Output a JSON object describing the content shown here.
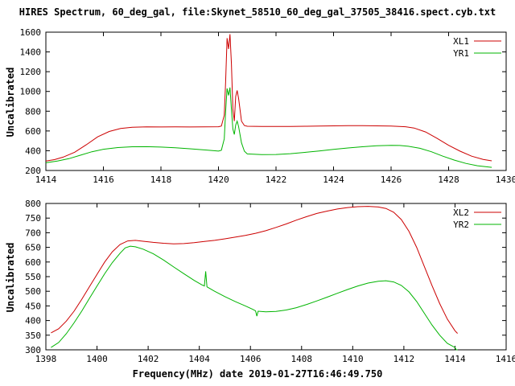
{
  "title": "HIRES Spectrum, 60_deg_gal, file:Skynet_58510_60_deg_gal_37505_38416.spect.cyb.txt",
  "xlabel": "Frequency(MHz) date 2019-01-27T16:46:49.750",
  "colors": {
    "red": "#cc0000",
    "green": "#00b400",
    "axis": "#000000",
    "background": "#ffffff"
  },
  "chart_data": [
    {
      "type": "line",
      "ylabel": "Uncalibrated",
      "xlim": [
        1414,
        1430
      ],
      "ylim": [
        200,
        1600
      ],
      "xticks": [
        1414,
        1416,
        1418,
        1420,
        1422,
        1424,
        1426,
        1428,
        1430
      ],
      "yticks": [
        200,
        400,
        600,
        800,
        1000,
        1200,
        1400,
        1600
      ],
      "legend_position": "top-right",
      "grid": false,
      "series": [
        {
          "name": "XL1",
          "color": "#cc0000",
          "points": [
            [
              1414.0,
              295
            ],
            [
              1414.3,
              310
            ],
            [
              1414.6,
              335
            ],
            [
              1415.0,
              385
            ],
            [
              1415.4,
              460
            ],
            [
              1415.8,
              540
            ],
            [
              1416.2,
              595
            ],
            [
              1416.6,
              625
            ],
            [
              1417.0,
              638
            ],
            [
              1417.5,
              641
            ],
            [
              1418.0,
              640
            ],
            [
              1418.5,
              641
            ],
            [
              1419.0,
              640
            ],
            [
              1419.5,
              641
            ],
            [
              1420.0,
              643
            ],
            [
              1420.1,
              650
            ],
            [
              1420.2,
              760
            ],
            [
              1420.25,
              1100
            ],
            [
              1420.3,
              1540
            ],
            [
              1420.35,
              1430
            ],
            [
              1420.4,
              1580
            ],
            [
              1420.45,
              1280
            ],
            [
              1420.5,
              820
            ],
            [
              1420.55,
              700
            ],
            [
              1420.6,
              950
            ],
            [
              1420.65,
              1010
            ],
            [
              1420.7,
              930
            ],
            [
              1420.8,
              700
            ],
            [
              1420.9,
              655
            ],
            [
              1421.0,
              648
            ],
            [
              1421.5,
              645
            ],
            [
              1422.0,
              646
            ],
            [
              1422.5,
              646
            ],
            [
              1423.0,
              648
            ],
            [
              1423.5,
              650
            ],
            [
              1424.0,
              652
            ],
            [
              1424.5,
              653
            ],
            [
              1425.0,
              654
            ],
            [
              1425.5,
              652
            ],
            [
              1426.0,
              650
            ],
            [
              1426.5,
              643
            ],
            [
              1426.8,
              630
            ],
            [
              1427.2,
              590
            ],
            [
              1427.6,
              525
            ],
            [
              1428.0,
              455
            ],
            [
              1428.4,
              395
            ],
            [
              1428.8,
              345
            ],
            [
              1429.2,
              312
            ],
            [
              1429.5,
              298
            ]
          ]
        },
        {
          "name": "YR1",
          "color": "#00b400",
          "points": [
            [
              1414.0,
              278
            ],
            [
              1414.4,
              295
            ],
            [
              1414.8,
              320
            ],
            [
              1415.2,
              355
            ],
            [
              1415.6,
              390
            ],
            [
              1416.0,
              415
            ],
            [
              1416.5,
              432
            ],
            [
              1417.0,
              440
            ],
            [
              1417.5,
              441
            ],
            [
              1418.0,
              437
            ],
            [
              1418.5,
              430
            ],
            [
              1419.0,
              420
            ],
            [
              1419.5,
              408
            ],
            [
              1420.0,
              396
            ],
            [
              1420.1,
              405
            ],
            [
              1420.2,
              520
            ],
            [
              1420.25,
              800
            ],
            [
              1420.3,
              1030
            ],
            [
              1420.35,
              960
            ],
            [
              1420.4,
              1040
            ],
            [
              1420.45,
              820
            ],
            [
              1420.5,
              620
            ],
            [
              1420.55,
              565
            ],
            [
              1420.6,
              660
            ],
            [
              1420.65,
              700
            ],
            [
              1420.7,
              645
            ],
            [
              1420.8,
              480
            ],
            [
              1420.9,
              395
            ],
            [
              1421.0,
              368
            ],
            [
              1421.5,
              360
            ],
            [
              1422.0,
              362
            ],
            [
              1422.5,
              370
            ],
            [
              1423.0,
              383
            ],
            [
              1423.5,
              398
            ],
            [
              1424.0,
              413
            ],
            [
              1424.5,
              428
            ],
            [
              1425.0,
              440
            ],
            [
              1425.5,
              450
            ],
            [
              1426.0,
              455
            ],
            [
              1426.3,
              453
            ],
            [
              1426.6,
              445
            ],
            [
              1427.0,
              425
            ],
            [
              1427.4,
              390
            ],
            [
              1427.8,
              345
            ],
            [
              1428.2,
              305
            ],
            [
              1428.6,
              272
            ],
            [
              1429.0,
              248
            ],
            [
              1429.5,
              232
            ]
          ]
        }
      ]
    },
    {
      "type": "line",
      "ylabel": "Uncalibrated",
      "xlim": [
        1398,
        1416
      ],
      "ylim": [
        300,
        800
      ],
      "xticks": [
        1398,
        1400,
        1402,
        1404,
        1406,
        1408,
        1410,
        1412,
        1414,
        1416
      ],
      "yticks": [
        300,
        350,
        400,
        450,
        500,
        550,
        600,
        650,
        700,
        750,
        800
      ],
      "legend_position": "top-right",
      "grid": false,
      "series": [
        {
          "name": "XL2",
          "color": "#cc0000",
          "points": [
            [
              1398.2,
              358
            ],
            [
              1398.5,
              372
            ],
            [
              1398.8,
              398
            ],
            [
              1399.1,
              432
            ],
            [
              1399.4,
              472
            ],
            [
              1399.7,
              515
            ],
            [
              1400.0,
              558
            ],
            [
              1400.3,
              600
            ],
            [
              1400.6,
              635
            ],
            [
              1400.9,
              660
            ],
            [
              1401.2,
              672
            ],
            [
              1401.5,
              674
            ],
            [
              1401.8,
              671
            ],
            [
              1402.2,
              667
            ],
            [
              1402.6,
              664
            ],
            [
              1403.0,
              662
            ],
            [
              1403.4,
              663
            ],
            [
              1403.8,
              666
            ],
            [
              1404.2,
              670
            ],
            [
              1404.6,
              674
            ],
            [
              1405.0,
              679
            ],
            [
              1405.4,
              685
            ],
            [
              1405.8,
              691
            ],
            [
              1406.2,
              698
            ],
            [
              1406.6,
              707
            ],
            [
              1407.0,
              718
            ],
            [
              1407.4,
              730
            ],
            [
              1407.8,
              743
            ],
            [
              1408.2,
              755
            ],
            [
              1408.6,
              766
            ],
            [
              1409.0,
              774
            ],
            [
              1409.4,
              781
            ],
            [
              1409.8,
              786
            ],
            [
              1410.2,
              789
            ],
            [
              1410.6,
              790
            ],
            [
              1411.0,
              788
            ],
            [
              1411.3,
              783
            ],
            [
              1411.6,
              770
            ],
            [
              1411.9,
              745
            ],
            [
              1412.2,
              705
            ],
            [
              1412.5,
              650
            ],
            [
              1412.8,
              585
            ],
            [
              1413.1,
              520
            ],
            [
              1413.4,
              458
            ],
            [
              1413.7,
              405
            ],
            [
              1414.0,
              365
            ],
            [
              1414.1,
              356
            ]
          ]
        },
        {
          "name": "YR2",
          "color": "#00b400",
          "points": [
            [
              1398.2,
              308
            ],
            [
              1398.5,
              325
            ],
            [
              1398.8,
              355
            ],
            [
              1399.1,
              392
            ],
            [
              1399.4,
              432
            ],
            [
              1399.7,
              475
            ],
            [
              1400.0,
              518
            ],
            [
              1400.3,
              560
            ],
            [
              1400.6,
              598
            ],
            [
              1400.9,
              630
            ],
            [
              1401.1,
              648
            ],
            [
              1401.3,
              654
            ],
            [
              1401.5,
              652
            ],
            [
              1401.8,
              644
            ],
            [
              1402.2,
              628
            ],
            [
              1402.6,
              607
            ],
            [
              1403.0,
              583
            ],
            [
              1403.4,
              560
            ],
            [
              1403.8,
              537
            ],
            [
              1404.1,
              522
            ],
            [
              1404.2,
              518
            ],
            [
              1404.25,
              568
            ],
            [
              1404.3,
              515
            ],
            [
              1404.6,
              500
            ],
            [
              1405.0,
              482
            ],
            [
              1405.4,
              465
            ],
            [
              1405.8,
              450
            ],
            [
              1406.1,
              438
            ],
            [
              1406.2,
              433
            ],
            [
              1406.25,
              415
            ],
            [
              1406.3,
              432
            ],
            [
              1406.6,
              430
            ],
            [
              1407.0,
              431
            ],
            [
              1407.4,
              436
            ],
            [
              1407.8,
              444
            ],
            [
              1408.2,
              455
            ],
            [
              1408.6,
              467
            ],
            [
              1409.0,
              480
            ],
            [
              1409.4,
              493
            ],
            [
              1409.8,
              506
            ],
            [
              1410.2,
              518
            ],
            [
              1410.6,
              528
            ],
            [
              1411.0,
              534
            ],
            [
              1411.3,
              536
            ],
            [
              1411.6,
              532
            ],
            [
              1411.9,
              520
            ],
            [
              1412.2,
              498
            ],
            [
              1412.5,
              465
            ],
            [
              1412.8,
              425
            ],
            [
              1413.1,
              385
            ],
            [
              1413.4,
              350
            ],
            [
              1413.7,
              322
            ],
            [
              1414.0,
              308
            ],
            [
              1414.05,
              300
            ],
            [
              1414.1,
              300
            ]
          ]
        }
      ]
    }
  ]
}
